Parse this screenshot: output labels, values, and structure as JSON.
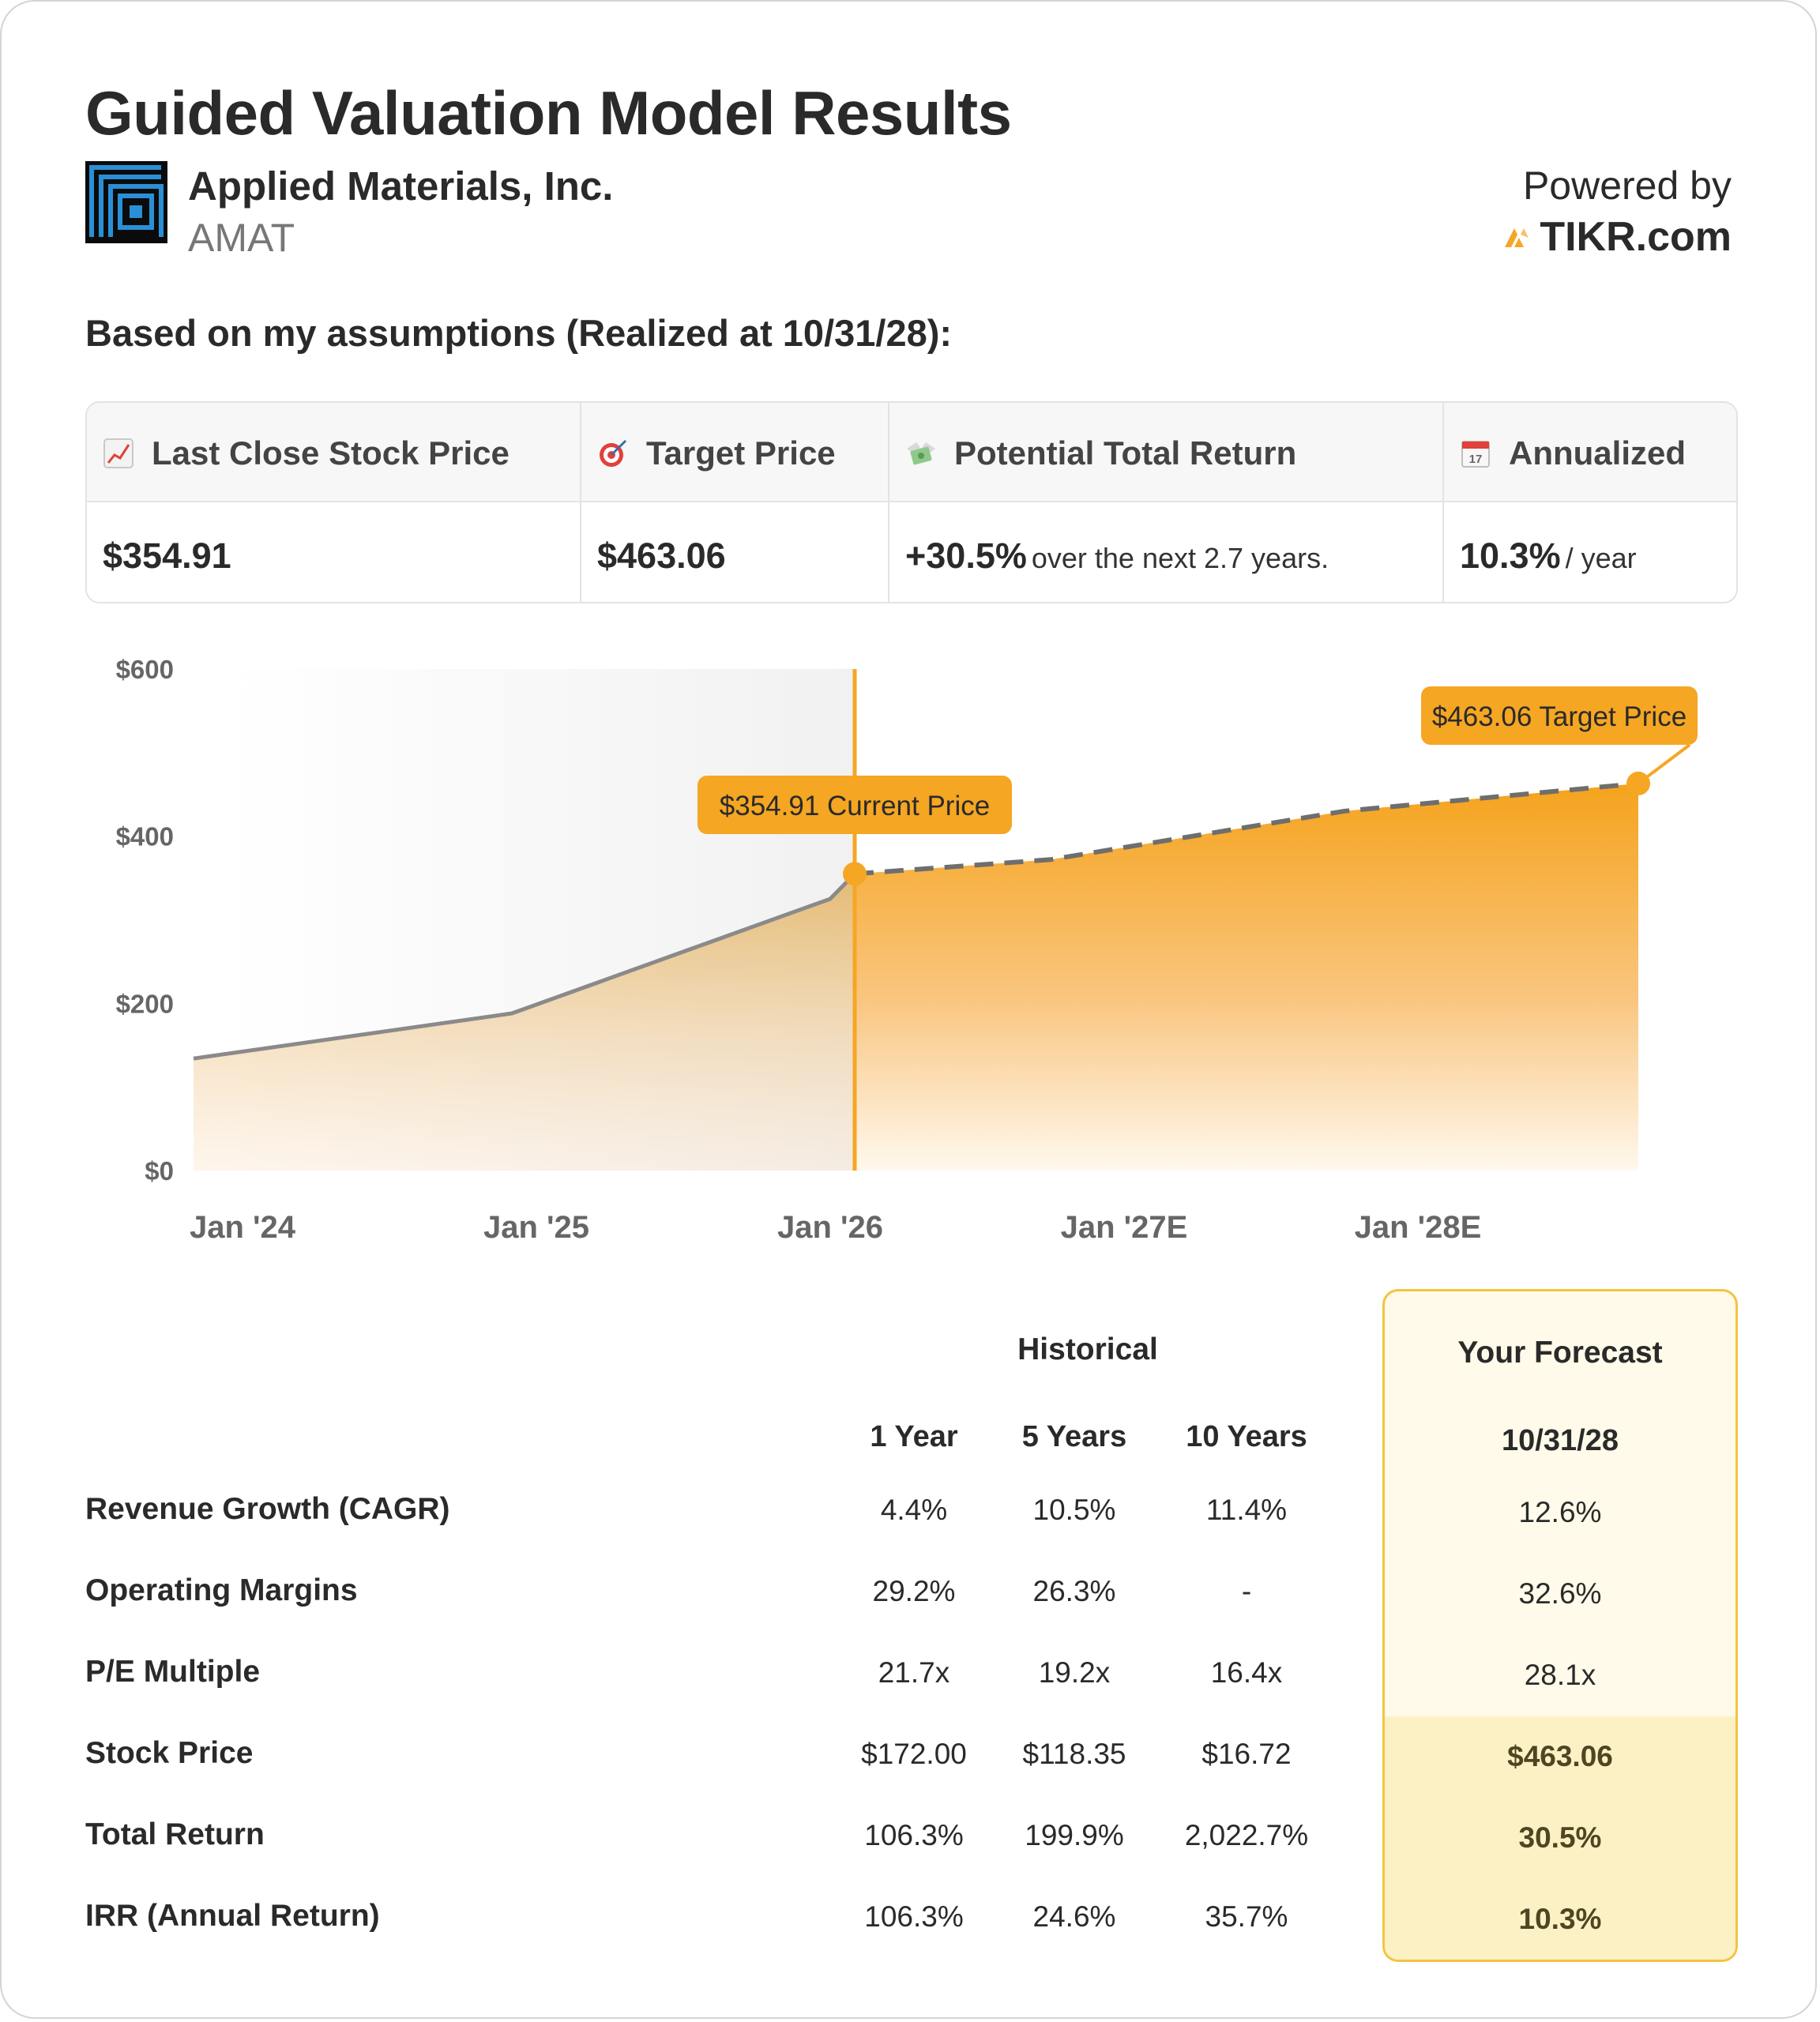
{
  "title": "Guided Valuation Model Results",
  "company": {
    "name": "Applied Materials, Inc.",
    "ticker": "AMAT"
  },
  "powered": {
    "label": "Powered by",
    "brand": "TIKR.com"
  },
  "assumptions_text": "Based on my assumptions (Realized at 10/31/28):",
  "summary": [
    {
      "label": "Last Close Stock Price",
      "icon": "chart-up-icon",
      "value": "$354.91",
      "sub": ""
    },
    {
      "label": "Target Price",
      "icon": "target-icon",
      "value": "$463.06",
      "sub": ""
    },
    {
      "label": "Potential Total Return",
      "icon": "money-wings-icon",
      "value": "+30.5%",
      "sub": "over the next 2.7 years."
    },
    {
      "label": "Annualized",
      "icon": "calendar-icon",
      "value": "10.3%",
      "sub": "/ year"
    }
  ],
  "chart_data": {
    "type": "area",
    "y_ticks": [
      "$600",
      "$400",
      "$200",
      "$0"
    ],
    "ylim": [
      0,
      600
    ],
    "x_ticks": [
      "Jan '24",
      "Jan '25",
      "Jan '26",
      "Jan '27E",
      "Jan '28E"
    ],
    "historical": [
      {
        "x": "2023-11",
        "y": 134
      },
      {
        "x": "2024-12",
        "y": 188
      },
      {
        "x": "2026-01",
        "y": 325
      },
      {
        "x": "2026-02",
        "y": 354.91
      }
    ],
    "forecast": [
      {
        "x": "2026-02",
        "y": 354.91
      },
      {
        "x": "2026-10",
        "y": 372
      },
      {
        "x": "2027-10",
        "y": 430
      },
      {
        "x": "2028-10",
        "y": 463.06
      }
    ],
    "current_label": "$354.91 Current Price",
    "target_label": "$463.06 Target Price",
    "colors": {
      "accent": "#f5a623",
      "line": "#8a8a8a"
    }
  },
  "table": {
    "historical_label": "Historical",
    "forecast_label": "Your Forecast",
    "forecast_date": "10/31/28",
    "columns": [
      "1 Year",
      "5 Years",
      "10 Years"
    ],
    "rows": [
      {
        "label": "Revenue Growth (CAGR)",
        "values": [
          "4.4%",
          "10.5%",
          "11.4%"
        ],
        "forecast": "12.6%"
      },
      {
        "label": "Operating Margins",
        "values": [
          "29.2%",
          "26.3%",
          "-"
        ],
        "forecast": "32.6%"
      },
      {
        "label": "P/E Multiple",
        "values": [
          "21.7x",
          "19.2x",
          "16.4x"
        ],
        "forecast": "28.1x"
      },
      {
        "label": "Stock Price",
        "values": [
          "$172.00",
          "$118.35",
          "$16.72"
        ],
        "forecast": "$463.06"
      },
      {
        "label": "Total Return",
        "values": [
          "106.3%",
          "199.9%",
          "2,022.7%"
        ],
        "forecast": "30.5%"
      },
      {
        "label": "IRR (Annual Return)",
        "values": [
          "106.3%",
          "24.6%",
          "35.7%"
        ],
        "forecast": "10.3%"
      }
    ]
  }
}
